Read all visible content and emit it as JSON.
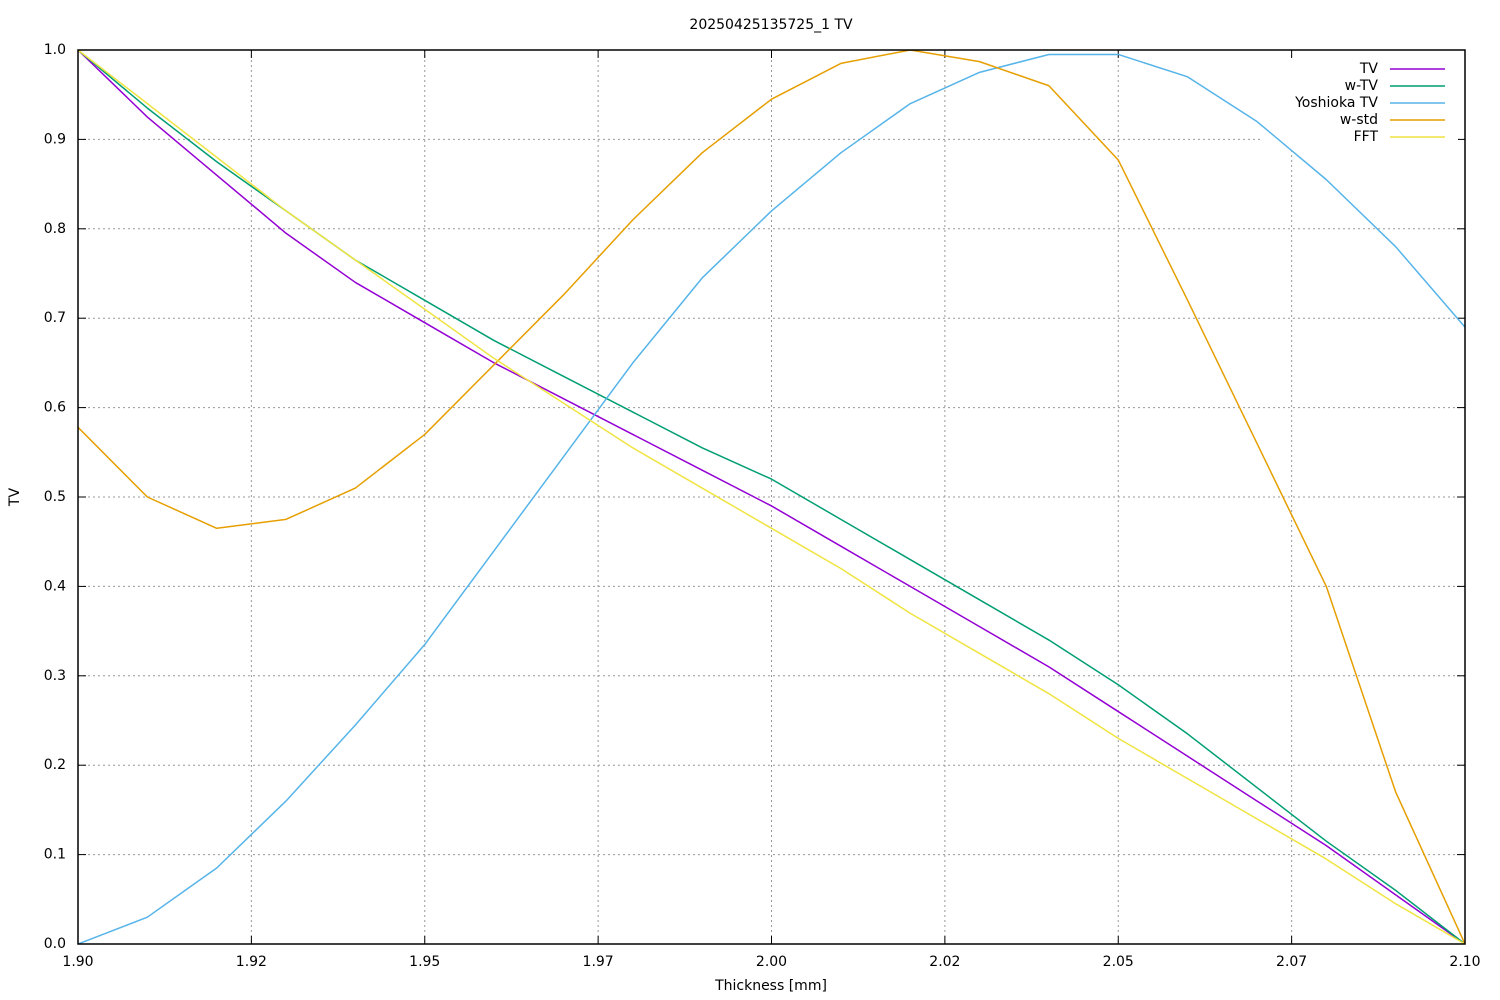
{
  "chart_data": {
    "type": "line",
    "title": "20250425135725_1 TV",
    "x_label": "Thickness [mm]",
    "y_label": "TV",
    "x": [
      1.9,
      1.91,
      1.92,
      1.93,
      1.94,
      1.95,
      1.96,
      1.97,
      1.98,
      1.99,
      2.0,
      2.01,
      2.02,
      2.03,
      2.04,
      2.05,
      2.06,
      2.07,
      2.08,
      2.09,
      2.1
    ],
    "series": [
      {
        "name": "TV",
        "color": "#9400d3",
        "values": [
          1.0,
          0.925,
          0.86,
          0.795,
          0.74,
          0.695,
          0.65,
          0.61,
          0.57,
          0.53,
          0.49,
          0.445,
          0.4,
          0.355,
          0.31,
          0.26,
          0.21,
          0.16,
          0.11,
          0.055,
          0.0
        ]
      },
      {
        "name": "w-TV",
        "color": "#009e73",
        "values": [
          1.0,
          0.935,
          0.875,
          0.82,
          0.765,
          0.72,
          0.675,
          0.635,
          0.595,
          0.555,
          0.52,
          0.475,
          0.43,
          0.385,
          0.34,
          0.29,
          0.235,
          0.175,
          0.115,
          0.06,
          0.0
        ]
      },
      {
        "name": "Yoshioka TV",
        "color": "#56b4e9",
        "values": [
          0.0,
          0.03,
          0.085,
          0.16,
          0.245,
          0.335,
          0.44,
          0.545,
          0.65,
          0.745,
          0.82,
          0.885,
          0.94,
          0.975,
          0.995,
          0.995,
          0.97,
          0.92,
          0.855,
          0.78,
          0.69
        ]
      },
      {
        "name": "w-std",
        "color": "#e69f00",
        "values": [
          0.578,
          0.5,
          0.465,
          0.475,
          0.51,
          0.57,
          0.648,
          0.726,
          0.81,
          0.885,
          0.945,
          0.985,
          1.0,
          0.987,
          0.96,
          0.877,
          0.72,
          0.56,
          0.4,
          0.17,
          0.0
        ]
      },
      {
        "name": "FFT",
        "color": "#f0e442",
        "values": [
          1.0,
          0.94,
          0.88,
          0.82,
          0.765,
          0.71,
          0.655,
          0.605,
          0.555,
          0.51,
          0.465,
          0.42,
          0.37,
          0.325,
          0.28,
          0.23,
          0.185,
          0.14,
          0.095,
          0.045,
          0.0
        ]
      }
    ],
    "xlim": [
      1.9,
      2.1
    ],
    "xticks": [
      {
        "value": 1.9,
        "label": "1.90"
      },
      {
        "value": 1.925,
        "label": "1.92"
      },
      {
        "value": 1.95,
        "label": "1.95"
      },
      {
        "value": 1.975,
        "label": "1.97"
      },
      {
        "value": 2.0,
        "label": "2.00"
      },
      {
        "value": 2.025,
        "label": "2.02"
      },
      {
        "value": 2.05,
        "label": "2.05"
      },
      {
        "value": 2.075,
        "label": "2.07"
      },
      {
        "value": 2.1,
        "label": "2.10"
      }
    ],
    "ylim": [
      0,
      1
    ],
    "yticks": [
      {
        "value": 0,
        "label": "0.0"
      },
      0.1,
      0.2,
      0.3,
      0.4,
      0.5,
      0.6,
      0.7,
      0.8,
      0.9,
      {
        "value": 1,
        "label": "1.0"
      }
    ],
    "grid": true,
    "legend": "top-right"
  }
}
